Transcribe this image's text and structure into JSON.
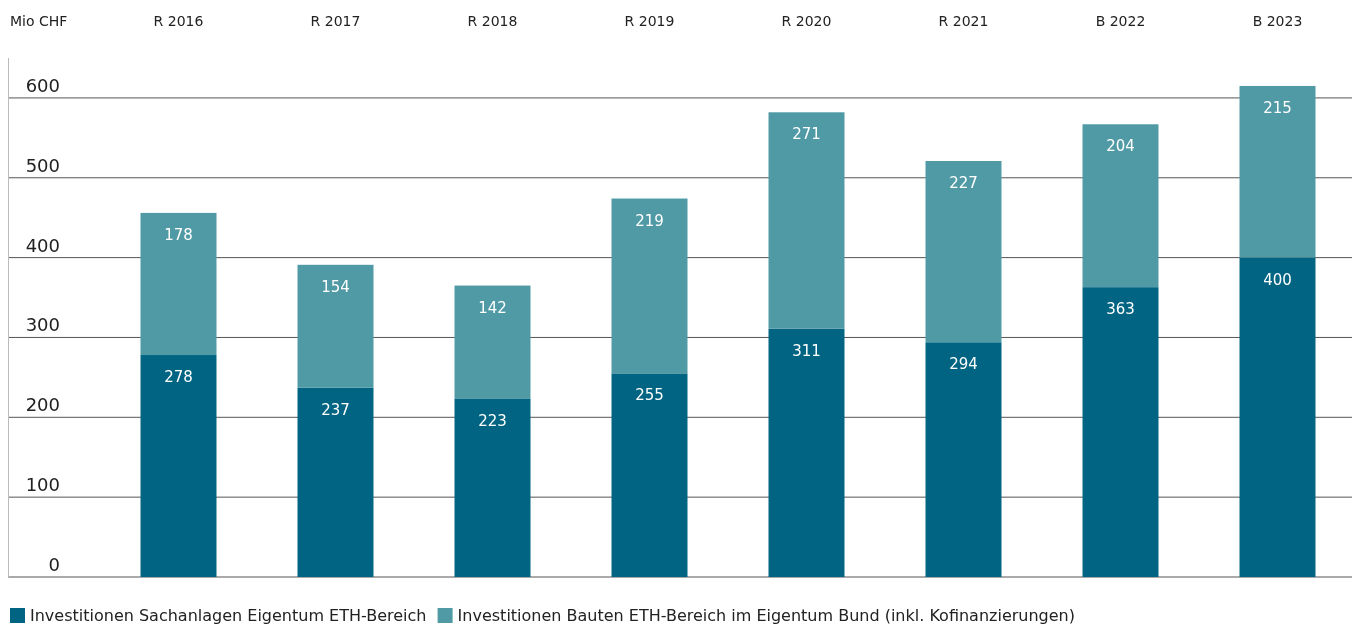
{
  "chart_data": {
    "type": "bar",
    "ylabel": "Mio CHF",
    "categories": [
      "R 2016",
      "R 2017",
      "R 2018",
      "R 2019",
      "R 2020",
      "R 2021",
      "B 2022",
      "B 2023"
    ],
    "series": [
      {
        "name": "Investitionen Sachanlagen Eigentum ETH-Bereich",
        "color": "#006482",
        "values": [
          278,
          237,
          223,
          255,
          311,
          294,
          363,
          400
        ]
      },
      {
        "name": "Investitionen Bauten ETH-Bereich im Eigentum Bund (inkl. Kofinanzierungen)",
        "color": "#509aa6",
        "values": [
          178,
          154,
          142,
          219,
          271,
          227,
          204,
          215
        ]
      }
    ],
    "stacked": true,
    "ylim": [
      0,
      650
    ],
    "yticks": [
      0,
      100,
      200,
      300,
      400,
      500,
      600
    ],
    "grid": "y",
    "legend": "bottom",
    "data_labels": true
  }
}
